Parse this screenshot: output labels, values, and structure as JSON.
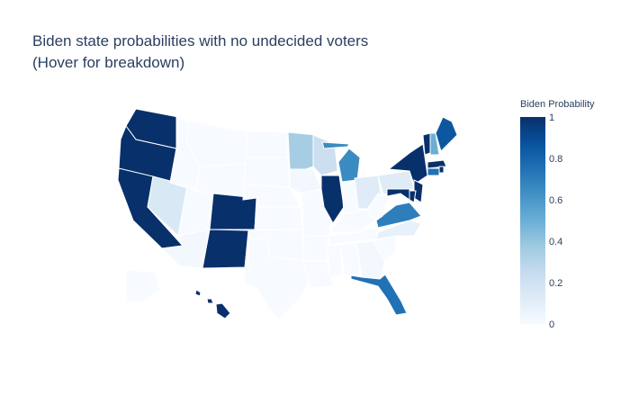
{
  "title": {
    "line1": "Biden state probabilities with no undecided voters",
    "line2": "(Hover for breakdown)"
  },
  "colorbar": {
    "title": "Biden Probability",
    "ticks": [
      "0",
      "0.2",
      "0.4",
      "0.6",
      "0.8",
      "1"
    ],
    "colorscale": [
      "#f7fbff",
      "#deebf7",
      "#c6dbef",
      "#9ecae1",
      "#6baed6",
      "#4292c6",
      "#2171b5",
      "#08519c",
      "#08306b"
    ]
  },
  "chart_data": {
    "type": "choropleth",
    "scope": "usa",
    "locationmode": "USA-states",
    "colorbar_range": [
      0,
      1
    ],
    "states": [
      {
        "code": "WA",
        "value": 1.0
      },
      {
        "code": "OR",
        "value": 1.0
      },
      {
        "code": "CA",
        "value": 1.0
      },
      {
        "code": "NV",
        "value": 0.15
      },
      {
        "code": "ID",
        "value": 0.0
      },
      {
        "code": "MT",
        "value": 0.0
      },
      {
        "code": "WY",
        "value": 0.0
      },
      {
        "code": "UT",
        "value": 0.0
      },
      {
        "code": "AZ",
        "value": 0.02
      },
      {
        "code": "CO",
        "value": 1.0
      },
      {
        "code": "NM",
        "value": 1.0
      },
      {
        "code": "ND",
        "value": 0.0
      },
      {
        "code": "SD",
        "value": 0.0
      },
      {
        "code": "NE",
        "value": 0.0
      },
      {
        "code": "KS",
        "value": 0.0
      },
      {
        "code": "OK",
        "value": 0.0
      },
      {
        "code": "TX",
        "value": 0.0
      },
      {
        "code": "MN",
        "value": 0.35
      },
      {
        "code": "IA",
        "value": 0.02
      },
      {
        "code": "MO",
        "value": 0.0
      },
      {
        "code": "AR",
        "value": 0.0
      },
      {
        "code": "LA",
        "value": 0.0
      },
      {
        "code": "WI",
        "value": 0.22
      },
      {
        "code": "IL",
        "value": 1.0
      },
      {
        "code": "MI",
        "value": 0.65
      },
      {
        "code": "IN",
        "value": 0.0
      },
      {
        "code": "OH",
        "value": 0.12
      },
      {
        "code": "KY",
        "value": 0.0
      },
      {
        "code": "TN",
        "value": 0.0
      },
      {
        "code": "MS",
        "value": 0.0
      },
      {
        "code": "AL",
        "value": 0.0
      },
      {
        "code": "GA",
        "value": 0.02
      },
      {
        "code": "FL",
        "value": 0.75
      },
      {
        "code": "SC",
        "value": 0.0
      },
      {
        "code": "NC",
        "value": 0.08
      },
      {
        "code": "VA",
        "value": 0.7
      },
      {
        "code": "WV",
        "value": 0.0
      },
      {
        "code": "PA",
        "value": 0.12
      },
      {
        "code": "NY",
        "value": 1.0
      },
      {
        "code": "VT",
        "value": 1.0
      },
      {
        "code": "NH",
        "value": 0.5
      },
      {
        "code": "ME",
        "value": 0.85
      },
      {
        "code": "MA",
        "value": 1.0
      },
      {
        "code": "RI",
        "value": 1.0
      },
      {
        "code": "CT",
        "value": 0.75
      },
      {
        "code": "NJ",
        "value": 1.0
      },
      {
        "code": "DE",
        "value": 1.0
      },
      {
        "code": "MD",
        "value": 1.0
      },
      {
        "code": "AK",
        "value": 0.0
      },
      {
        "code": "HI",
        "value": 1.0
      }
    ]
  }
}
